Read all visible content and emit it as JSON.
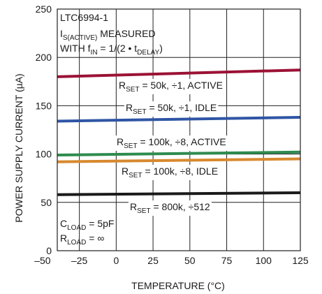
{
  "chart_data": {
    "type": "line",
    "xlabel": "TEMPERATURE (°C)",
    "ylabel": "POWER SUPPLY CURRENT (µA)",
    "xlim": [
      -40,
      125
    ],
    "ylim": [
      0,
      250
    ],
    "xticks": [
      -50,
      -25,
      0,
      25,
      50,
      75,
      100,
      125
    ],
    "xtick_labels": [
      "–50",
      "–25",
      "0",
      "25",
      "50",
      "75",
      "100",
      "125"
    ],
    "yticks": [
      0,
      50,
      100,
      150,
      200,
      250
    ],
    "grid": true,
    "annotation_top": {
      "line1": "LTC6994-1",
      "line2_main": "I",
      "line2_sub": "S(ACTIVE)",
      "line2_rest": " MEASURED",
      "line3_a": "WITH f",
      "line3_sub1": "IN",
      "line3_b": " = 1/(2 • t",
      "line3_sub2": "DELAY",
      "line3_c": ")"
    },
    "annotation_bottom": {
      "c_main": "C",
      "c_sub": "LOAD",
      "c_rest": " = 5pF",
      "r_main": "R",
      "r_sub": "LOAD",
      "r_rest": " = ∞"
    },
    "series": [
      {
        "label_main": "R",
        "label_sub": "SET",
        "label_rest": " = 50k, ÷1, ACTIVE",
        "color": "#9b1235",
        "x": [
          -40,
          125
        ],
        "y": [
          180,
          187
        ]
      },
      {
        "label_main": "R",
        "label_sub": "SET",
        "label_rest": " = 50k, ÷1, IDLE",
        "color": "#2f55a4",
        "x": [
          -40,
          125
        ],
        "y": [
          134,
          138
        ]
      },
      {
        "label_main": "R",
        "label_sub": "SET",
        "label_rest": " = 100k, ÷8, ACTIVE",
        "color": "#2e8b4e",
        "x": [
          -40,
          125
        ],
        "y": [
          99,
          102
        ]
      },
      {
        "label_main": "R",
        "label_sub": "SET",
        "label_rest": " = 100k, ÷8, IDLE",
        "color": "#d7892f",
        "x": [
          -40,
          125
        ],
        "y": [
          92,
          95
        ]
      },
      {
        "label_main": "R",
        "label_sub": "SET",
        "label_rest": " = 800k, ÷512",
        "color": "#1a1a1a",
        "x": [
          -40,
          125
        ],
        "y": [
          58,
          60
        ]
      }
    ]
  }
}
